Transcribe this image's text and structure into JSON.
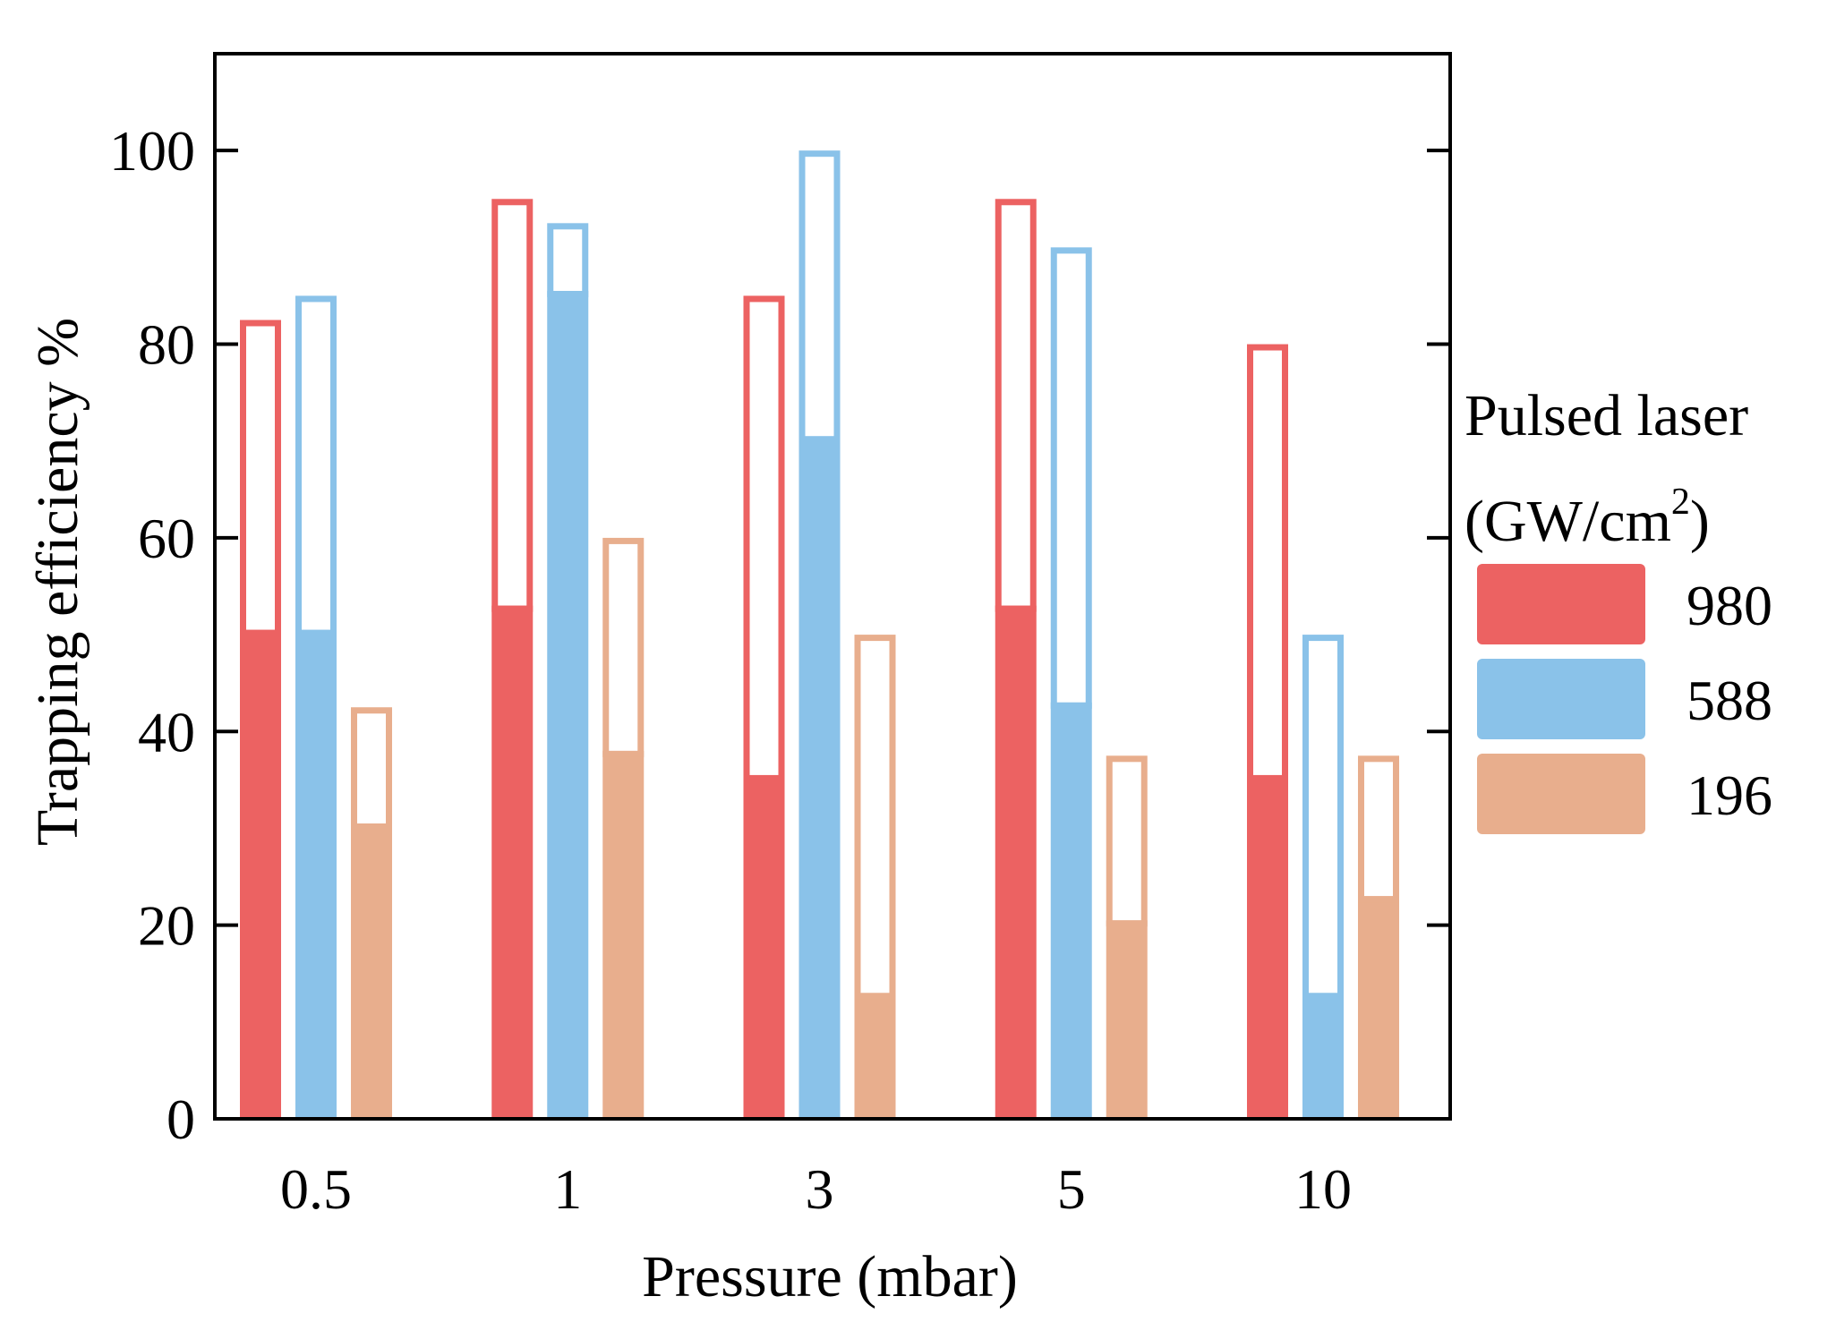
{
  "chart_data": {
    "type": "bar",
    "xlabel": "Pressure (mbar)",
    "ylabel": "Trapping efficiency %",
    "ylim": [
      0,
      110
    ],
    "yticks": [
      0,
      20,
      40,
      60,
      80,
      100
    ],
    "categories": [
      "0.5",
      "1",
      "3",
      "5",
      "10"
    ],
    "legend": {
      "title_line1": "Pulsed laser",
      "title_line2_prefix": "(GW/cm",
      "title_line2_sup": "2",
      "title_line2_suffix": ")",
      "placement": "right"
    },
    "series": [
      {
        "name": "980",
        "color": "#EC6262",
        "filled": [
          50.5,
          53,
          35.5,
          53,
          35.5
        ],
        "total": [
          82.5,
          95,
          85,
          95,
          80
        ]
      },
      {
        "name": "588",
        "color": "#8AC2E9",
        "filled": [
          50.5,
          85.5,
          70.5,
          43,
          13
        ],
        "total": [
          85,
          92.5,
          100,
          90,
          50
        ]
      },
      {
        "name": "196",
        "color": "#E8AE8D",
        "filled": [
          30.5,
          38,
          13,
          20.5,
          23
        ],
        "total": [
          42.5,
          60,
          50,
          37.5,
          37.5
        ]
      }
    ]
  }
}
